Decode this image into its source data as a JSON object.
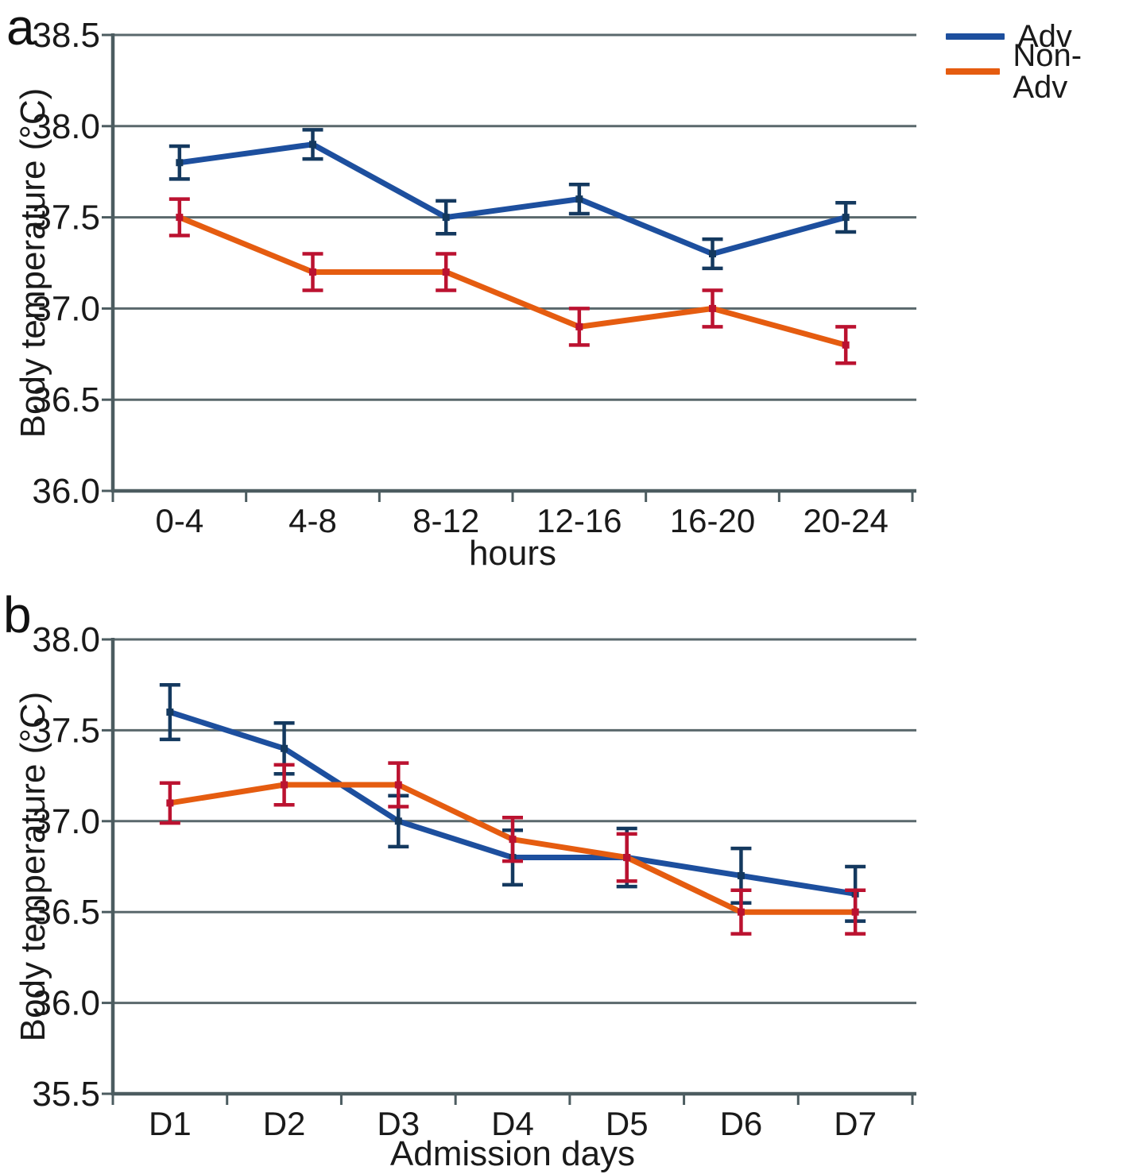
{
  "figure": {
    "panel_a_letter": "a",
    "panel_b_letter": "b"
  },
  "colors": {
    "grid": "#5a686c",
    "axis": "#4c5c60",
    "text": "#1a1a1a",
    "adv_line": "#1d4f9e",
    "adv_error": "#14395f",
    "nonadv_line": "#e55c10",
    "nonadv_error": "#bb1230"
  },
  "chart_data": [
    {
      "id": "a",
      "type": "line",
      "title": "",
      "xlabel": "hours",
      "ylabel": "Body temperature (°C)",
      "categories": [
        "0-4",
        "4-8",
        "8-12",
        "12-16",
        "16-20",
        "20-24"
      ],
      "ylim": [
        36.0,
        38.5
      ],
      "yticks": [
        38.5,
        38.0,
        37.5,
        37.0,
        36.5,
        36.0
      ],
      "ytick_labels": [
        "38.5",
        "38.0",
        "37.5",
        "37.0",
        "36.5",
        "36.0"
      ],
      "grid": true,
      "error_bars": true,
      "legend_position": "top-right-outside",
      "series": [
        {
          "name": "Adv",
          "color": "#1d4f9e",
          "error_color": "#14395f",
          "values": [
            37.8,
            37.9,
            37.5,
            37.6,
            37.3,
            37.5
          ],
          "errors": [
            0.09,
            0.08,
            0.09,
            0.08,
            0.08,
            0.08
          ]
        },
        {
          "name": "Non-Adv",
          "color": "#e55c10",
          "error_color": "#bb1230",
          "values": [
            37.5,
            37.2,
            37.2,
            36.9,
            37.0,
            36.8
          ],
          "errors": [
            0.1,
            0.1,
            0.1,
            0.1,
            0.1,
            0.1
          ]
        }
      ]
    },
    {
      "id": "b",
      "type": "line",
      "title": "",
      "xlabel": "Admission days",
      "ylabel": "Body temperature (°C)",
      "categories": [
        "D1",
        "D2",
        "D3",
        "D4",
        "D5",
        "D6",
        "D7"
      ],
      "ylim": [
        35.5,
        38.0
      ],
      "yticks": [
        38.0,
        37.5,
        37.0,
        36.5,
        36.0,
        35.5
      ],
      "ytick_labels": [
        "38.0",
        "37.5",
        "37.0",
        "36.5",
        "36.0",
        "35.5"
      ],
      "grid": true,
      "error_bars": true,
      "legend_position": "none",
      "series": [
        {
          "name": "Adv",
          "color": "#1d4f9e",
          "error_color": "#14395f",
          "values": [
            37.6,
            37.4,
            37.0,
            36.8,
            36.8,
            36.7,
            36.6
          ],
          "errors": [
            0.15,
            0.14,
            0.14,
            0.15,
            0.16,
            0.15,
            0.15
          ]
        },
        {
          "name": "Non-Adv",
          "color": "#e55c10",
          "error_color": "#bb1230",
          "values": [
            37.1,
            37.2,
            37.2,
            36.9,
            36.8,
            36.5,
            36.5
          ],
          "errors": [
            0.11,
            0.11,
            0.12,
            0.12,
            0.13,
            0.12,
            0.12
          ]
        }
      ]
    }
  ]
}
